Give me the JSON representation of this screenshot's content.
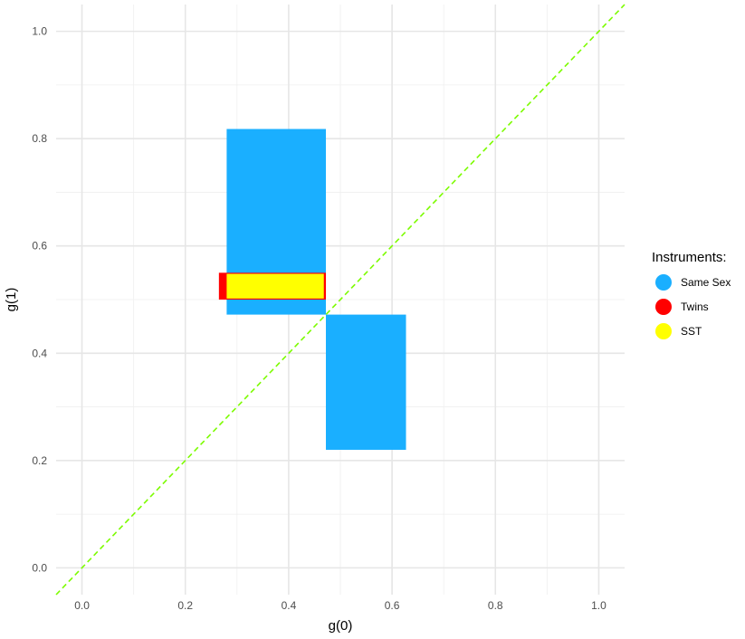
{
  "chart_data": {
    "type": "rectangles",
    "xlabel": "g(0)",
    "ylabel": "g(1)",
    "xlim": [
      -0.05,
      1.05
    ],
    "ylim": [
      -0.05,
      1.05
    ],
    "x_ticks": [
      "0.0",
      "0.2",
      "0.4",
      "0.6",
      "0.8",
      "1.0"
    ],
    "y_ticks": [
      "0.0",
      "0.2",
      "0.4",
      "0.6",
      "0.8",
      "1.0"
    ],
    "grid": true,
    "reference_line": {
      "slope": 1,
      "intercept": 0,
      "style": "dashed",
      "color": "#7CFC00"
    },
    "legend": {
      "title": "Instruments:",
      "position": "right",
      "entries": [
        {
          "label": "Same Sex",
          "color": "#1AAFFF"
        },
        {
          "label": "Twins",
          "color": "#FF0000"
        },
        {
          "label": "SST",
          "color": "#FFFF00"
        }
      ]
    },
    "series": [
      {
        "name": "Same Sex",
        "color": "#1AAFFF",
        "rects": [
          {
            "xmin": 0.28,
            "xmax": 0.472,
            "ymin": 0.472,
            "ymax": 0.818
          },
          {
            "xmin": 0.472,
            "xmax": 0.627,
            "ymin": 0.22,
            "ymax": 0.472
          }
        ]
      },
      {
        "name": "Twins",
        "color": "#FF0000",
        "rects": [
          {
            "xmin": 0.265,
            "xmax": 0.472,
            "ymin": 0.5,
            "ymax": 0.55
          }
        ]
      },
      {
        "name": "SST",
        "color": "#FFFF00",
        "rects": [
          {
            "xmin": 0.28,
            "xmax": 0.468,
            "ymin": 0.502,
            "ymax": 0.548
          }
        ]
      }
    ]
  }
}
